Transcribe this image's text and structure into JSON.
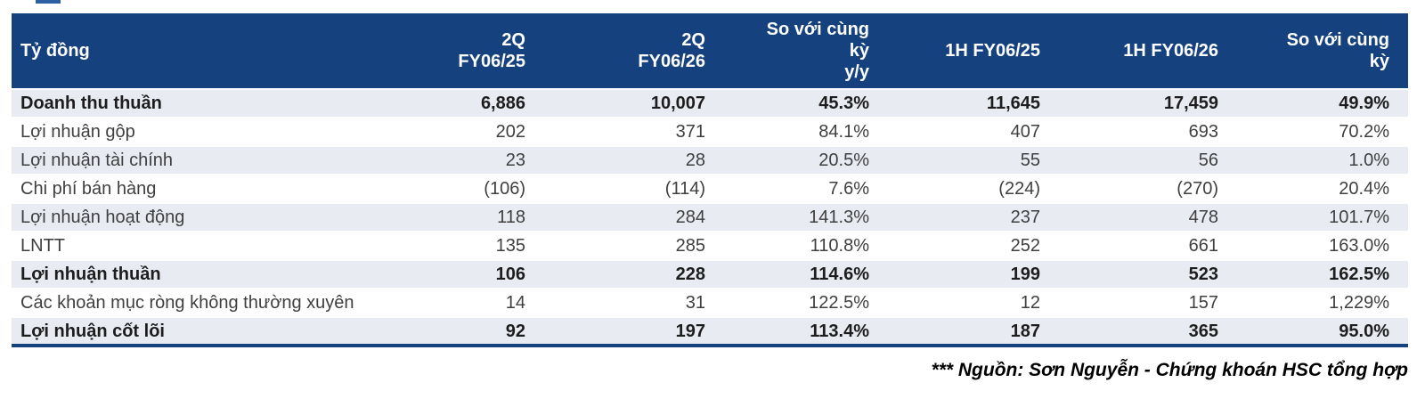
{
  "colors": {
    "header_bg": "#15417F",
    "shaded_row_bg": "#E9EBF3",
    "header_text": "#FFFFFF",
    "body_text": "#3F3F3F",
    "emphasis_text": "#1D1D1D"
  },
  "table": {
    "unit_label": "Tỷ đồng",
    "columns": [
      "2Q\nFY06/25",
      "2Q\nFY06/26",
      "So với cùng\nkỳ\ny/y",
      "1H FY06/25",
      "1H FY06/26",
      "So với cùng\nkỳ"
    ],
    "rows": [
      {
        "label": "Doanh thu thuần",
        "emphasis": true,
        "values": [
          "6,886",
          "10,007",
          "45.3%",
          "11,645",
          "17,459",
          "49.9%"
        ]
      },
      {
        "label": "Lợi nhuận gộp",
        "emphasis": false,
        "values": [
          "202",
          "371",
          "84.1%",
          "407",
          "693",
          "70.2%"
        ]
      },
      {
        "label": "Lợi nhuận tài chính",
        "emphasis": false,
        "values": [
          "23",
          "28",
          "20.5%",
          "55",
          "56",
          "1.0%"
        ]
      },
      {
        "label": "Chi phí bán hàng",
        "emphasis": false,
        "values": [
          "(106)",
          "(114)",
          "7.6%",
          "(224)",
          "(270)",
          "20.4%"
        ]
      },
      {
        "label": "Lợi nhuận hoạt động",
        "emphasis": false,
        "values": [
          "118",
          "284",
          "141.3%",
          "237",
          "478",
          "101.7%"
        ]
      },
      {
        "label": "LNTT",
        "emphasis": false,
        "values": [
          "135",
          "285",
          "110.8%",
          "252",
          "661",
          "163.0%"
        ]
      },
      {
        "label": "Lợi nhuận thuần",
        "emphasis": true,
        "values": [
          "106",
          "228",
          "114.6%",
          "199",
          "523",
          "162.5%"
        ]
      },
      {
        "label": "Các khoản mục ròng không thường xuyên",
        "emphasis": false,
        "values": [
          "14",
          "31",
          "122.5%",
          "12",
          "157",
          "1,229%"
        ]
      },
      {
        "label": "Lợi nhuận cốt lõi",
        "emphasis": true,
        "values": [
          "92",
          "197",
          "113.4%",
          "187",
          "365",
          "95.0%"
        ]
      }
    ]
  },
  "footer": {
    "source_note": "*** Nguồn: Sơn Nguyễn - Chứng khoán HSC tổng hợp"
  }
}
